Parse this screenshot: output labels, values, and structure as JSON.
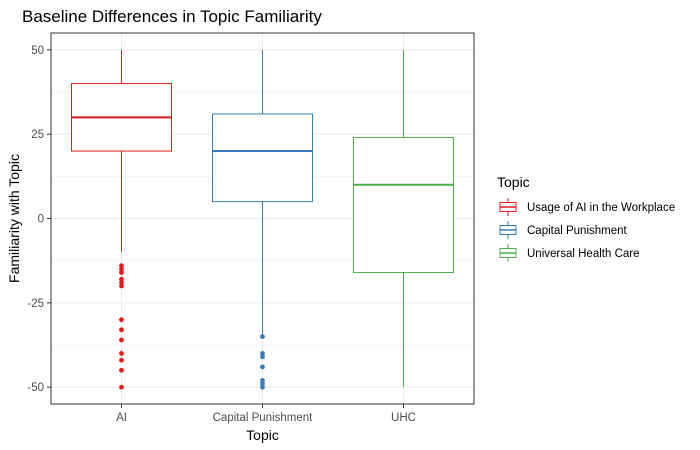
{
  "chart_data": {
    "type": "boxplot",
    "title": "Baseline Differences in Topic Familiarity",
    "xlabel": "Topic",
    "ylabel": "Familiarity with Topic",
    "ylim": [
      -55,
      55
    ],
    "yticks": [
      -50,
      -25,
      0,
      25,
      50
    ],
    "grid": true,
    "legend": {
      "title": "Topic",
      "placement": "right",
      "entries": [
        "Usage of AI in the Workplace",
        "Capital Punishment",
        "Universal Health Care"
      ]
    },
    "categories": [
      "AI",
      "Capital Punishment",
      "UHC"
    ],
    "series": [
      {
        "name": "Usage of AI in the Workplace",
        "category": "AI",
        "color": "#e41a1c",
        "whisker_low": -10,
        "q1": 20,
        "median": 30,
        "q3": 40,
        "whisker_high": 50,
        "outliers": [
          -14,
          -15,
          -16,
          -18,
          -19,
          -20,
          -30,
          -33,
          -36,
          -40,
          -42,
          -45,
          -50
        ]
      },
      {
        "name": "Capital Punishment",
        "category": "Capital Punishment",
        "color": "#377eb8",
        "whisker_low": -35,
        "q1": 5,
        "median": 20,
        "q3": 31,
        "whisker_high": 50,
        "outliers": [
          -35,
          -40,
          -41,
          -44,
          -48,
          -49,
          -50
        ]
      },
      {
        "name": "Universal Health Care",
        "category": "UHC",
        "color": "#4daf4a",
        "whisker_low": -50,
        "q1": -16,
        "median": 10,
        "q3": 24,
        "whisker_high": 50,
        "outliers": []
      }
    ]
  }
}
